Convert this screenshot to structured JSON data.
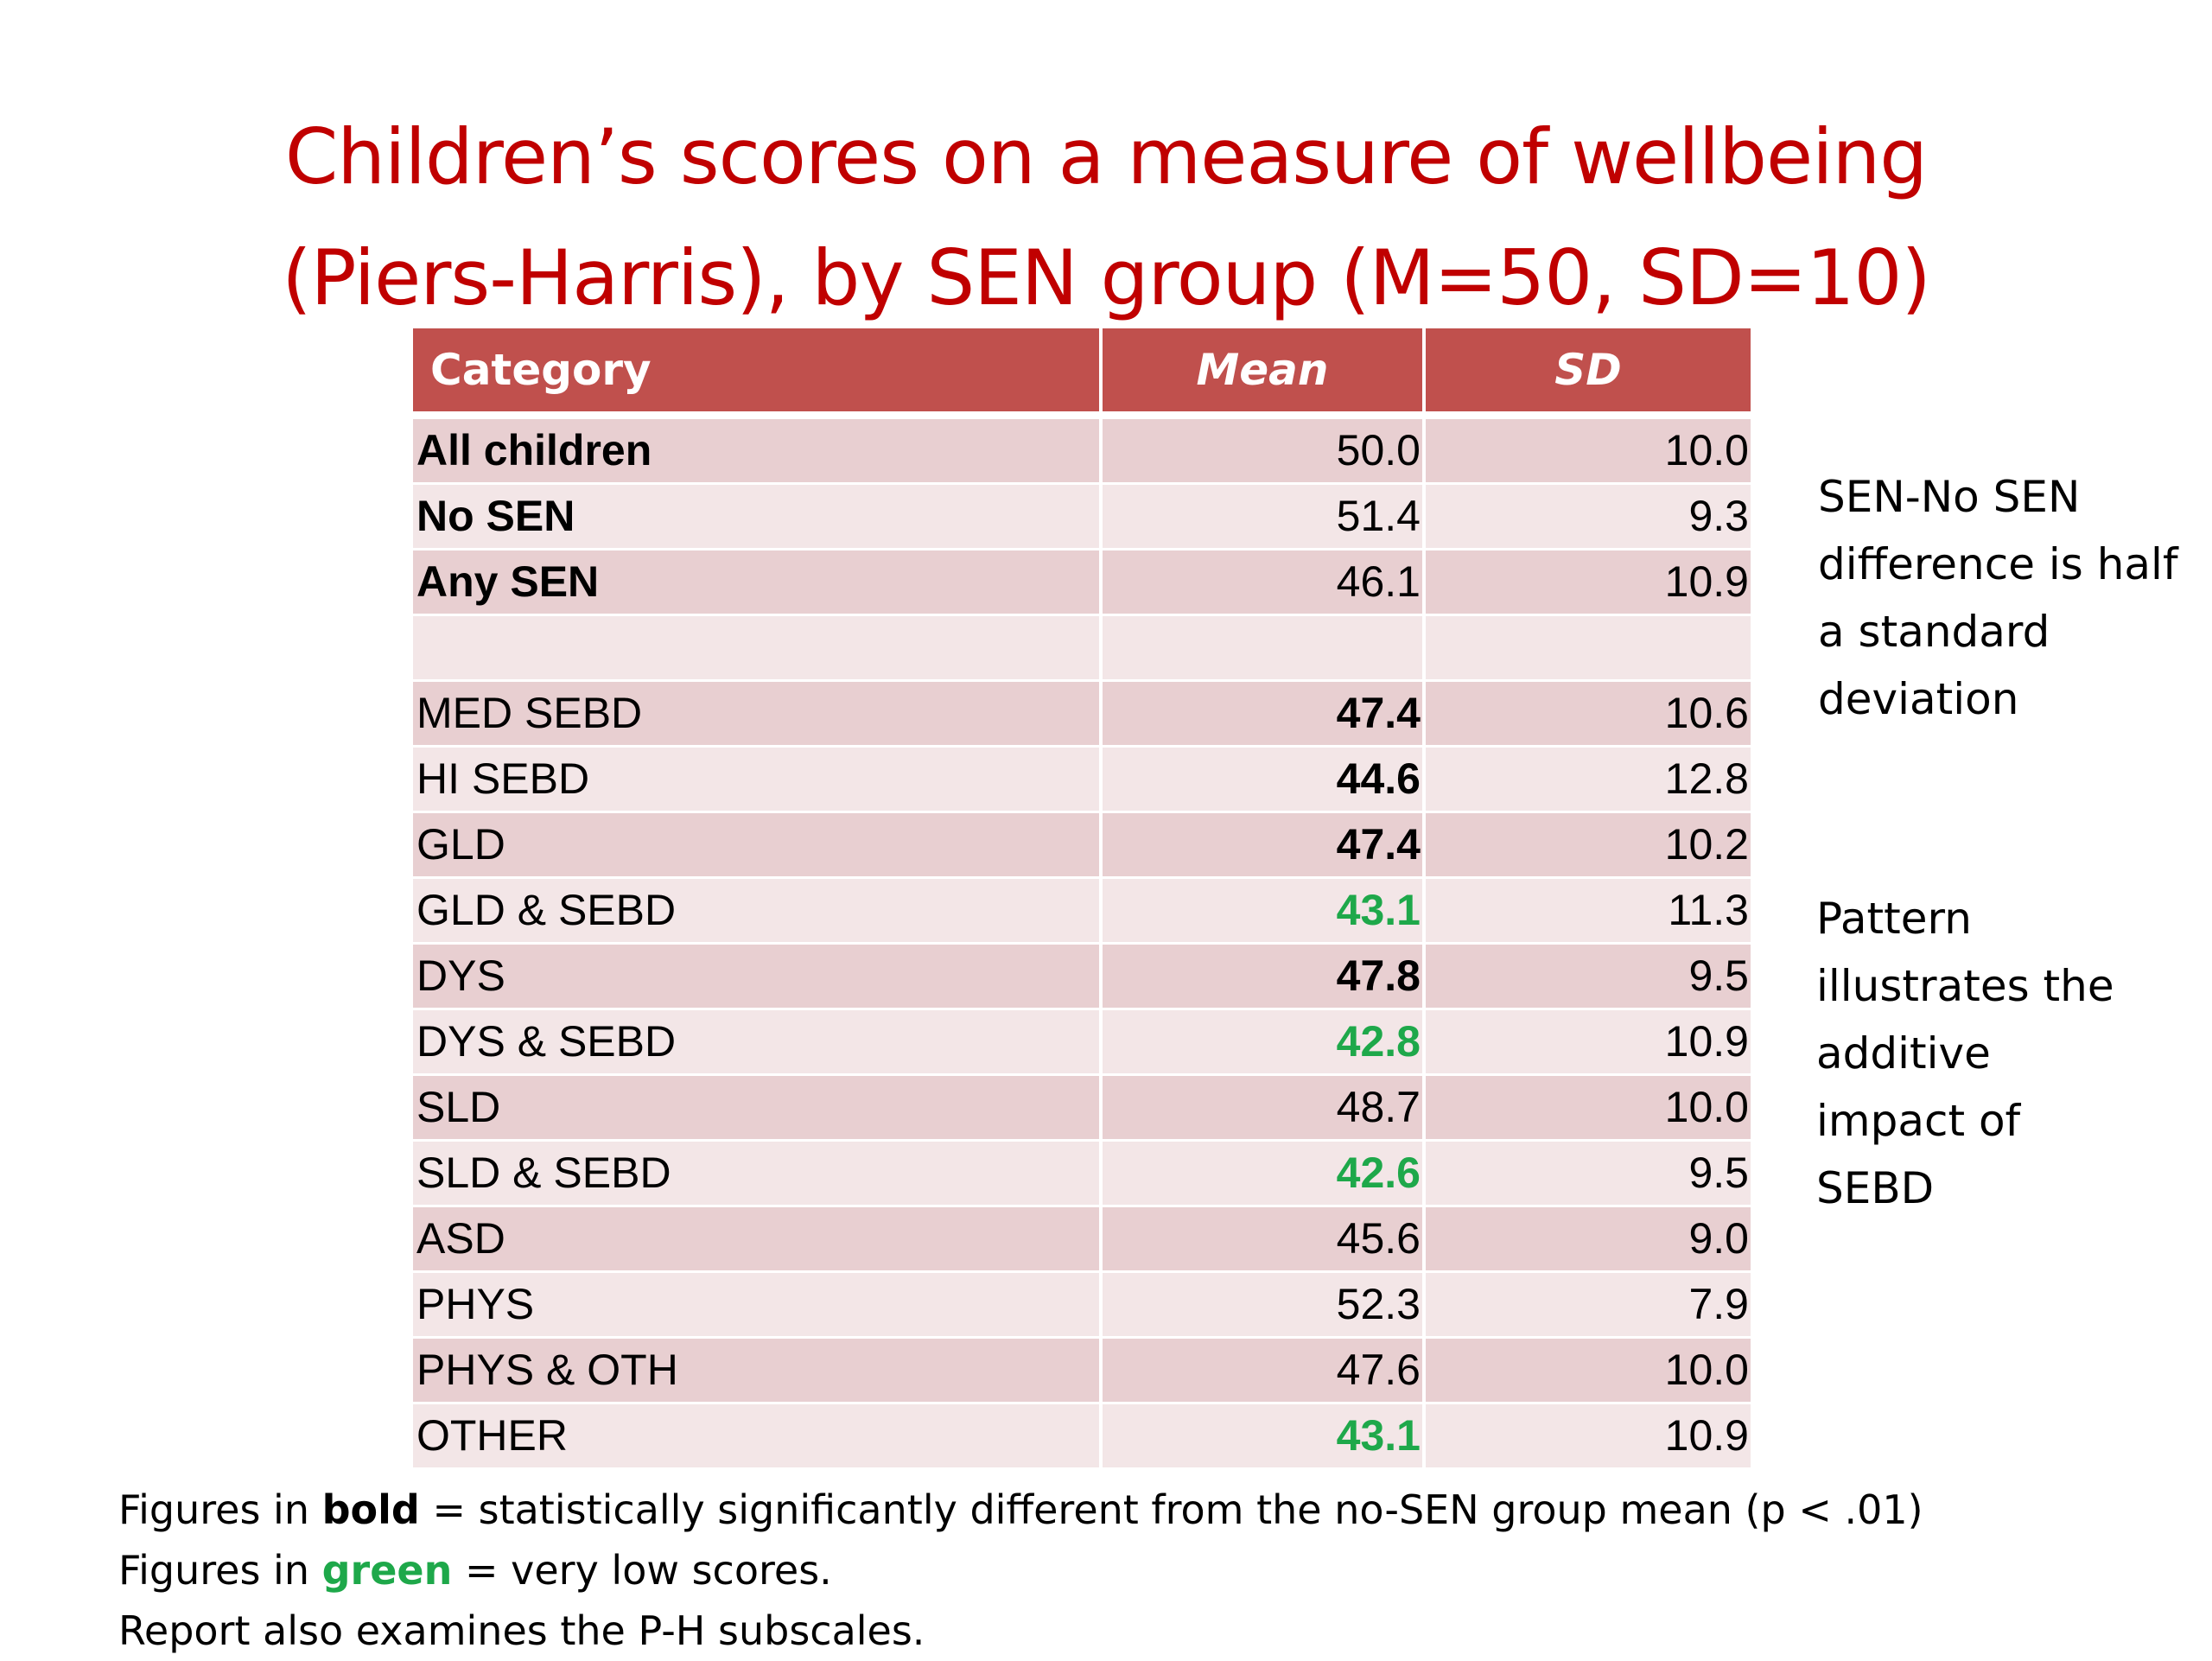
{
  "title": {
    "line1": "Children’s scores on a measure of wellbeing",
    "line2": "(Piers-Harris), by SEN group (M=50, SD=10)"
  },
  "table": {
    "headers": [
      "Category",
      "Mean",
      "SD"
    ],
    "rows": [
      {
        "category": "All children",
        "mean": "50.0",
        "sd": "10.0",
        "category_bold": true,
        "mean_style": "normal"
      },
      {
        "category": "No SEN",
        "mean": "51.4",
        "sd": "9.3",
        "category_bold": true,
        "mean_style": "normal"
      },
      {
        "category": "Any SEN",
        "mean": "46.1",
        "sd": "10.9",
        "category_bold": true,
        "mean_style": "normal"
      },
      {
        "category": "",
        "mean": "",
        "sd": "",
        "category_bold": false,
        "mean_style": "normal"
      },
      {
        "category": "MED SEBD",
        "mean": "47.4",
        "sd": "10.6",
        "category_bold": false,
        "mean_style": "bold"
      },
      {
        "category": "HI SEBD",
        "mean": "44.6",
        "sd": "12.8",
        "category_bold": false,
        "mean_style": "bold"
      },
      {
        "category": "GLD",
        "mean": "47.4",
        "sd": "10.2",
        "category_bold": false,
        "mean_style": "bold"
      },
      {
        "category": "GLD & SEBD",
        "mean": "43.1",
        "sd": "11.3",
        "category_bold": false,
        "mean_style": "green"
      },
      {
        "category": "DYS",
        "mean": "47.8",
        "sd": "9.5",
        "category_bold": false,
        "mean_style": "bold"
      },
      {
        "category": "DYS & SEBD",
        "mean": "42.8",
        "sd": "10.9",
        "category_bold": false,
        "mean_style": "green"
      },
      {
        "category": "SLD",
        "mean": "48.7",
        "sd": "10.0",
        "category_bold": false,
        "mean_style": "normal"
      },
      {
        "category": "SLD & SEBD",
        "mean": "42.6",
        "sd": "9.5",
        "category_bold": false,
        "mean_style": "green"
      },
      {
        "category": "ASD",
        "mean": "45.6",
        "sd": "9.0",
        "category_bold": false,
        "mean_style": "normal"
      },
      {
        "category": "PHYS",
        "mean": "52.3",
        "sd": "7.9",
        "category_bold": false,
        "mean_style": "normal"
      },
      {
        "category": "PHYS & OTH",
        "mean": "47.6",
        "sd": "10.0",
        "category_bold": false,
        "mean_style": "normal"
      },
      {
        "category": "OTHER",
        "mean": "43.1",
        "sd": "10.9",
        "category_bold": false,
        "mean_style": "green"
      }
    ]
  },
  "note1": [
    "SEN-No SEN",
    "difference is half",
    "a standard",
    "deviation"
  ],
  "note2": [
    "Pattern",
    "illustrates the",
    "additive",
    "impact of",
    "SEBD"
  ],
  "footer": {
    "line1_prefix": "Figures in ",
    "line1_em": "bold",
    "line1_suffix": " = statistically significantly different from the no-SEN group mean (p < .01)",
    "line2_prefix": "Figures in ",
    "line2_em": "green",
    "line2_suffix": " = very low scores.",
    "line3": "Report also examines the P-H subscales."
  },
  "colors": {
    "title": "#c00000",
    "header_bg": "#c0504d",
    "row_odd": "#e8cfd1",
    "row_even": "#f3e6e7",
    "green": "#1ea84a"
  }
}
